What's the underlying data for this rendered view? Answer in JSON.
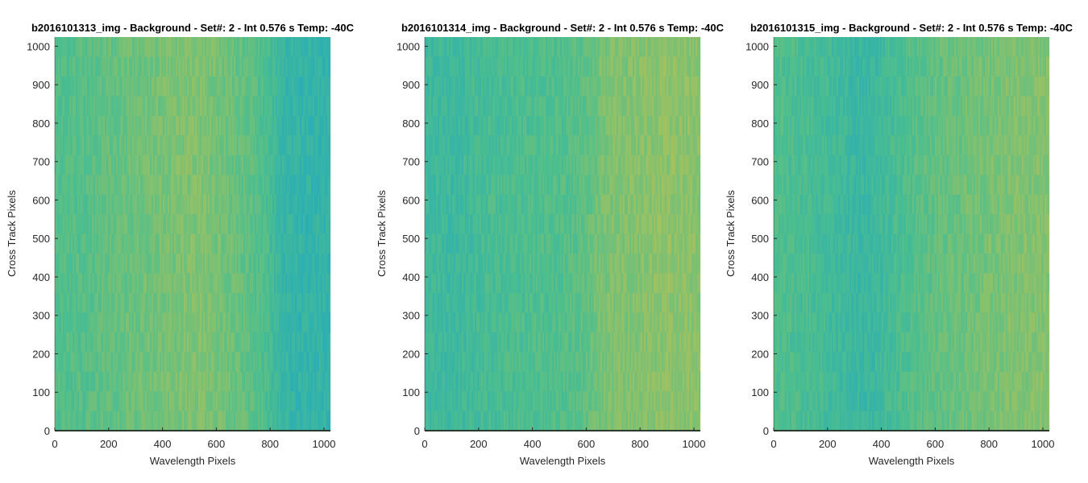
{
  "chart_data": [
    {
      "type": "heatmap",
      "title": "b2016101313_img - Background - Set#: 2 - Int 0.576 s Temp: -40C",
      "xlabel": "Wavelength Pixels",
      "ylabel": "Cross Track Pixels",
      "xlim": [
        0,
        1024
      ],
      "ylim": [
        0,
        1024
      ],
      "xticks": [
        0,
        200,
        400,
        600,
        800,
        1000
      ],
      "yticks": [
        0,
        100,
        200,
        300,
        400,
        500,
        600,
        700,
        800,
        900,
        1000
      ],
      "column_profile": {
        "x": [
          0,
          100,
          200,
          300,
          400,
          500,
          550,
          600,
          700,
          800,
          830,
          900,
          1024
        ],
        "level": [
          0.5,
          0.52,
          0.58,
          0.62,
          0.66,
          0.7,
          0.7,
          0.66,
          0.58,
          0.45,
          0.32,
          0.28,
          0.27
        ]
      }
    },
    {
      "type": "heatmap",
      "title": "b2016101314_img - Background - Set#: 2 - Int 0.576 s Temp: -40C",
      "xlabel": "Wavelength Pixels",
      "ylabel": "Cross Track Pixels",
      "xlim": [
        0,
        1024
      ],
      "ylim": [
        0,
        1024
      ],
      "xticks": [
        0,
        200,
        400,
        600,
        800,
        1000
      ],
      "yticks": [
        0,
        100,
        200,
        300,
        400,
        500,
        600,
        700,
        800,
        900,
        1000
      ],
      "column_profile": {
        "x": [
          0,
          100,
          200,
          300,
          400,
          500,
          600,
          650,
          700,
          800,
          900,
          1024
        ],
        "level": [
          0.38,
          0.36,
          0.42,
          0.46,
          0.48,
          0.5,
          0.56,
          0.66,
          0.7,
          0.72,
          0.76,
          0.74
        ]
      }
    },
    {
      "type": "heatmap",
      "title": "b2016101315_img - Background - Set#: 2 - Int 0.576 s Temp: -40C",
      "xlabel": "Wavelength Pixels",
      "ylabel": "Cross Track Pixels",
      "xlim": [
        0,
        1024
      ],
      "ylim": [
        0,
        1024
      ],
      "xticks": [
        0,
        200,
        400,
        600,
        800,
        1000
      ],
      "yticks": [
        0,
        100,
        200,
        300,
        400,
        500,
        600,
        700,
        800,
        900,
        1000
      ],
      "column_profile": {
        "x": [
          0,
          100,
          200,
          300,
          350,
          400,
          500,
          600,
          700,
          800,
          900,
          1024
        ],
        "level": [
          0.5,
          0.46,
          0.4,
          0.34,
          0.33,
          0.38,
          0.5,
          0.58,
          0.62,
          0.66,
          0.7,
          0.72
        ]
      }
    }
  ],
  "colors": {
    "low": "#17a5cc",
    "mid": "#4fbf8c",
    "high": "#c9c24a",
    "axis": "#262626",
    "bottom_bar": "#2b3a2f"
  }
}
